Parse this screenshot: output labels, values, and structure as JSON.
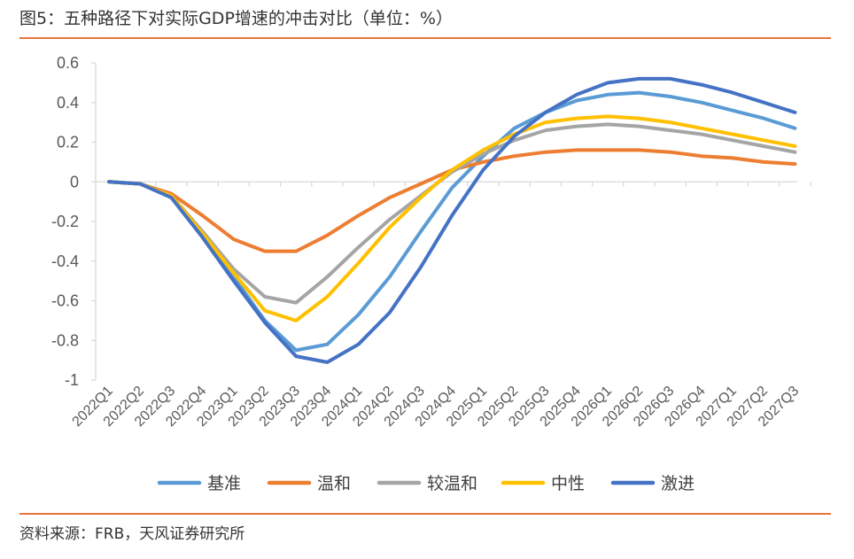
{
  "figure": {
    "title": "图5：五种路径下对实际GDP增速的冲击对比（单位：%）",
    "source": "资料来源：FRB，天风证券研究所"
  },
  "chart_data": {
    "type": "line",
    "x": [
      "2022Q1",
      "2022Q2",
      "2022Q3",
      "2022Q4",
      "2023Q1",
      "2023Q2",
      "2023Q3",
      "2023Q4",
      "2024Q1",
      "2024Q2",
      "2024Q3",
      "2024Q4",
      "2025Q1",
      "2025Q2",
      "2025Q3",
      "2025Q4",
      "2026Q1",
      "2026Q2",
      "2026Q3",
      "2026Q4",
      "2027Q1",
      "2027Q2",
      "2027Q3"
    ],
    "ylim": [
      -1,
      0.6
    ],
    "yticks": [
      0.6,
      0.4,
      0.2,
      0,
      -0.2,
      -0.4,
      -0.6,
      -0.8,
      -1
    ],
    "ytick_labels": [
      "0.6",
      "0.4",
      "0.2",
      "0",
      "-0.2",
      "-0.4",
      "-0.6",
      "-0.8",
      "-1"
    ],
    "grid": false,
    "legend_position": "bottom",
    "series": [
      {
        "name": "基准",
        "color": "#5B9BD5",
        "values": [
          0,
          -0.01,
          -0.07,
          -0.27,
          -0.48,
          -0.7,
          -0.85,
          -0.82,
          -0.67,
          -0.48,
          -0.25,
          -0.03,
          0.13,
          0.27,
          0.35,
          0.41,
          0.44,
          0.45,
          0.43,
          0.4,
          0.36,
          0.32,
          0.27
        ]
      },
      {
        "name": "温和",
        "color": "#ED7D31",
        "values": [
          0,
          -0.01,
          -0.06,
          -0.17,
          -0.29,
          -0.35,
          -0.35,
          -0.27,
          -0.17,
          -0.08,
          -0.01,
          0.06,
          0.1,
          0.13,
          0.15,
          0.16,
          0.16,
          0.16,
          0.15,
          0.13,
          0.12,
          0.1,
          0.09
        ]
      },
      {
        "name": "较温和",
        "color": "#A5A5A5",
        "values": [
          0,
          -0.01,
          -0.07,
          -0.25,
          -0.44,
          -0.58,
          -0.61,
          -0.48,
          -0.33,
          -0.19,
          -0.07,
          0.05,
          0.14,
          0.21,
          0.26,
          0.28,
          0.29,
          0.28,
          0.26,
          0.24,
          0.21,
          0.18,
          0.15
        ]
      },
      {
        "name": "中性",
        "color": "#FFC000",
        "values": [
          0,
          -0.01,
          -0.07,
          -0.26,
          -0.46,
          -0.65,
          -0.7,
          -0.58,
          -0.41,
          -0.23,
          -0.08,
          0.06,
          0.16,
          0.24,
          0.3,
          0.32,
          0.33,
          0.32,
          0.3,
          0.27,
          0.24,
          0.21,
          0.18
        ]
      },
      {
        "name": "激进",
        "color": "#4472C4",
        "values": [
          0,
          -0.01,
          -0.08,
          -0.28,
          -0.5,
          -0.71,
          -0.88,
          -0.91,
          -0.82,
          -0.66,
          -0.43,
          -0.17,
          0.06,
          0.23,
          0.35,
          0.44,
          0.5,
          0.52,
          0.52,
          0.49,
          0.45,
          0.4,
          0.35
        ]
      }
    ]
  }
}
